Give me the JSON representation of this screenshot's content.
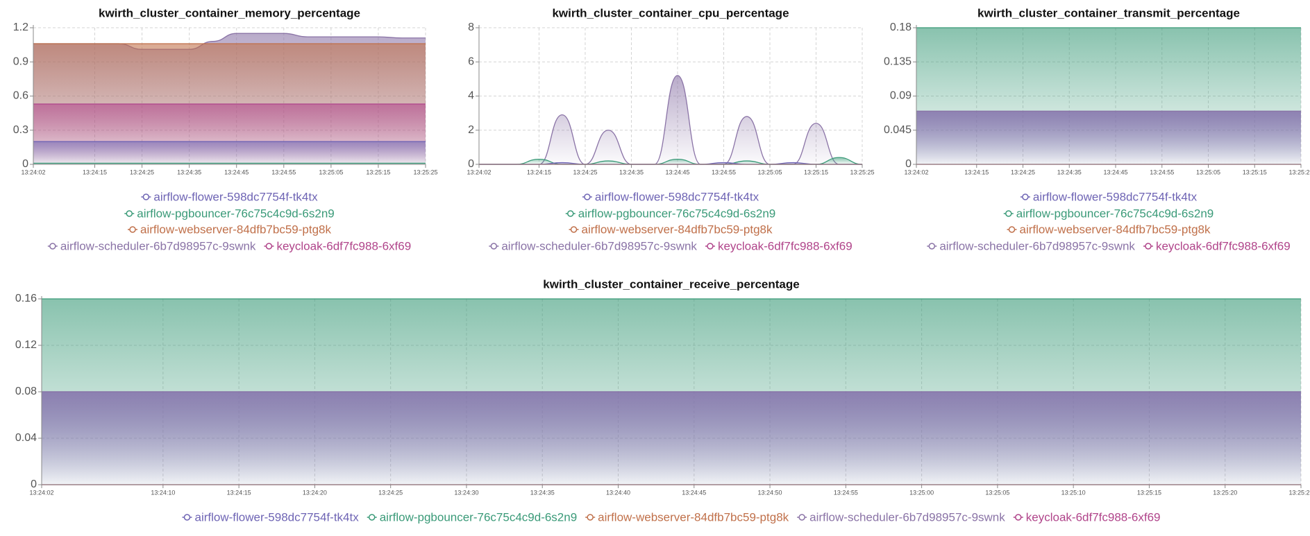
{
  "chart_data": [
    {
      "type": "area",
      "title": "kwirth_cluster_container_memory_percentage",
      "x": [
        "13:24:02",
        "13:24:05",
        "13:24:10",
        "13:24:15",
        "13:24:20",
        "13:24:25",
        "13:24:30",
        "13:24:35",
        "13:24:40",
        "13:24:45",
        "13:24:50",
        "13:24:55",
        "13:25:00",
        "13:25:05",
        "13:25:10",
        "13:25:15",
        "13:25:20",
        "13:25:25"
      ],
      "xticks": [
        "13:24:02",
        "13:24:15",
        "13:24:25",
        "13:24:35",
        "13:24:45",
        "13:24:55",
        "13:25:05",
        "13:25:15",
        "13:25:25"
      ],
      "ylim": [
        0,
        1.2
      ],
      "yticks": [
        0,
        0.3,
        0.6,
        0.9,
        1.2
      ],
      "grid": true,
      "series": [
        {
          "name": "airflow-flower-598dc7754f-tk4tx",
          "color": "#6e64b4",
          "values": [
            0.2,
            0.2,
            0.2,
            0.2,
            0.2,
            0.2,
            0.2,
            0.2,
            0.2,
            0.2,
            0.2,
            0.2,
            0.2,
            0.2,
            0.2,
            0.2,
            0.2,
            0.2
          ]
        },
        {
          "name": "airflow-pgbouncer-76c75c4c9d-6s2n9",
          "color": "#3a9a78",
          "values": [
            0.01,
            0.01,
            0.01,
            0.01,
            0.01,
            0.01,
            0.01,
            0.01,
            0.01,
            0.01,
            0.01,
            0.01,
            0.01,
            0.01,
            0.01,
            0.01,
            0.01,
            0.01
          ]
        },
        {
          "name": "airflow-webserver-84dfb7bc59-ptg8k",
          "color": "#c0704a",
          "values": [
            1.06,
            1.06,
            1.06,
            1.06,
            1.06,
            1.06,
            1.06,
            1.06,
            1.06,
            1.06,
            1.06,
            1.06,
            1.06,
            1.06,
            1.06,
            1.06,
            1.06,
            1.06
          ]
        },
        {
          "name": "airflow-scheduler-6b7d98957c-9swnk",
          "color": "#8a73a6",
          "values": [
            1.06,
            1.06,
            1.06,
            1.06,
            1.06,
            1.01,
            1.01,
            1.01,
            1.08,
            1.15,
            1.15,
            1.15,
            1.12,
            1.12,
            1.12,
            1.12,
            1.11,
            1.11
          ]
        },
        {
          "name": "keycloak-6df7fc988-6xf69",
          "color": "#b0448a",
          "values": [
            0.53,
            0.53,
            0.53,
            0.53,
            0.53,
            0.53,
            0.53,
            0.53,
            0.53,
            0.53,
            0.53,
            0.53,
            0.53,
            0.53,
            0.53,
            0.53,
            0.53,
            0.53
          ]
        }
      ]
    },
    {
      "type": "area",
      "title": "kwirth_cluster_container_cpu_percentage",
      "x": [
        "13:24:02",
        "13:24:05",
        "13:24:10",
        "13:24:15",
        "13:24:20",
        "13:24:25",
        "13:24:30",
        "13:24:35",
        "13:24:40",
        "13:24:45",
        "13:24:50",
        "13:24:55",
        "13:25:00",
        "13:25:05",
        "13:25:10",
        "13:25:15",
        "13:25:20",
        "13:25:25"
      ],
      "xticks": [
        "13:24:02",
        "13:24:15",
        "13:24:25",
        "13:24:35",
        "13:24:45",
        "13:24:55",
        "13:25:05",
        "13:25:15",
        "13:25:25"
      ],
      "ylim": [
        0,
        8
      ],
      "yticks": [
        0,
        2,
        4,
        6,
        8
      ],
      "grid": true,
      "series": [
        {
          "name": "airflow-flower-598dc7754f-tk4tx",
          "color": "#6e64b4",
          "values": [
            0,
            0,
            0,
            0,
            0.1,
            0,
            0,
            0,
            0,
            0,
            0,
            0.1,
            0,
            0,
            0.1,
            0,
            0,
            0
          ]
        },
        {
          "name": "airflow-pgbouncer-76c75c4c9d-6s2n9",
          "color": "#3a9a78",
          "values": [
            0,
            0,
            0,
            0.3,
            0,
            0,
            0.2,
            0,
            0,
            0.3,
            0,
            0,
            0.2,
            0,
            0,
            0,
            0.4,
            0
          ]
        },
        {
          "name": "airflow-webserver-84dfb7bc59-ptg8k",
          "color": "#c0704a",
          "values": [
            0,
            0,
            0,
            0,
            0,
            0,
            0,
            0,
            0,
            0,
            0,
            0,
            0,
            0,
            0,
            0,
            0,
            0
          ]
        },
        {
          "name": "airflow-scheduler-6b7d98957c-9swnk",
          "color": "#8a73a6",
          "values": [
            0,
            0,
            0,
            0,
            2.9,
            0,
            2.0,
            0,
            0,
            5.2,
            0,
            0,
            2.8,
            0,
            0,
            2.4,
            0,
            0
          ]
        },
        {
          "name": "keycloak-6df7fc988-6xf69",
          "color": "#b0448a",
          "values": [
            0,
            0,
            0,
            0,
            0,
            0,
            0,
            0,
            0,
            0,
            0,
            0,
            0,
            0,
            0,
            0,
            0,
            0
          ]
        }
      ]
    },
    {
      "type": "area",
      "title": "kwirth_cluster_container_transmit_percentage",
      "x": [
        "13:24:02",
        "13:24:05",
        "13:24:10",
        "13:24:15",
        "13:24:20",
        "13:24:25",
        "13:24:30",
        "13:24:35",
        "13:24:40",
        "13:24:45",
        "13:24:50",
        "13:24:55",
        "13:25:00",
        "13:25:05",
        "13:25:10",
        "13:25:15",
        "13:25:20",
        "13:25:25"
      ],
      "xticks": [
        "13:24:02",
        "13:24:15",
        "13:24:25",
        "13:24:35",
        "13:24:45",
        "13:24:55",
        "13:25:05",
        "13:25:15",
        "13:25:25"
      ],
      "ylim": [
        0,
        0.18
      ],
      "yticks": [
        0,
        0.045,
        0.09,
        0.135,
        0.18
      ],
      "grid": true,
      "series": [
        {
          "name": "airflow-flower-598dc7754f-tk4tx",
          "color": "#6e64b4",
          "values": [
            0.07,
            0.07,
            0.07,
            0.07,
            0.07,
            0.07,
            0.07,
            0.07,
            0.07,
            0.07,
            0.07,
            0.07,
            0.07,
            0.07,
            0.07,
            0.07,
            0.07,
            0.07
          ]
        },
        {
          "name": "airflow-pgbouncer-76c75c4c9d-6s2n9",
          "color": "#3a9a78",
          "values": [
            0.18,
            0.18,
            0.18,
            0.18,
            0.18,
            0.18,
            0.18,
            0.18,
            0.18,
            0.18,
            0.18,
            0.18,
            0.18,
            0.18,
            0.18,
            0.18,
            0.18,
            0.18
          ]
        },
        {
          "name": "airflow-webserver-84dfb7bc59-ptg8k",
          "color": "#c0704a",
          "values": [
            0,
            0,
            0,
            0,
            0,
            0,
            0,
            0,
            0,
            0,
            0,
            0,
            0,
            0,
            0,
            0,
            0,
            0
          ]
        },
        {
          "name": "airflow-scheduler-6b7d98957c-9swnk",
          "color": "#8a73a6",
          "values": [
            0.07,
            0.07,
            0.07,
            0.07,
            0.07,
            0.07,
            0.07,
            0.07,
            0.07,
            0.07,
            0.07,
            0.07,
            0.07,
            0.07,
            0.07,
            0.07,
            0.07,
            0.07
          ]
        },
        {
          "name": "keycloak-6df7fc988-6xf69",
          "color": "#b0448a",
          "values": [
            0,
            0,
            0,
            0,
            0,
            0,
            0,
            0,
            0,
            0,
            0,
            0,
            0,
            0,
            0,
            0,
            0,
            0
          ]
        }
      ]
    },
    {
      "type": "area",
      "title": "kwirth_cluster_container_receive_percentage",
      "x": [
        "13:24:02",
        "13:24:05",
        "13:24:10",
        "13:24:15",
        "13:24:20",
        "13:24:25",
        "13:24:30",
        "13:24:35",
        "13:24:40",
        "13:24:45",
        "13:24:50",
        "13:24:55",
        "13:25:00",
        "13:25:05",
        "13:25:10",
        "13:25:15",
        "13:25:20",
        "13:25:25"
      ],
      "xticks": [
        "13:24:02",
        "13:24:10",
        "13:24:15",
        "13:24:20",
        "13:24:25",
        "13:24:30",
        "13:24:35",
        "13:24:40",
        "13:24:45",
        "13:24:50",
        "13:24:55",
        "13:25:00",
        "13:25:05",
        "13:25:10",
        "13:25:15",
        "13:25:20",
        "13:25:25"
      ],
      "ylim": [
        0,
        0.16
      ],
      "yticks": [
        0,
        0.04,
        0.08,
        0.12,
        0.16
      ],
      "grid": true,
      "series": [
        {
          "name": "airflow-flower-598dc7754f-tk4tx",
          "color": "#6e64b4",
          "values": [
            0.08,
            0.08,
            0.08,
            0.08,
            0.08,
            0.08,
            0.08,
            0.08,
            0.08,
            0.08,
            0.08,
            0.08,
            0.08,
            0.08,
            0.08,
            0.08,
            0.08,
            0.08
          ]
        },
        {
          "name": "airflow-pgbouncer-76c75c4c9d-6s2n9",
          "color": "#3a9a78",
          "values": [
            0.16,
            0.16,
            0.16,
            0.16,
            0.16,
            0.16,
            0.16,
            0.16,
            0.16,
            0.16,
            0.16,
            0.16,
            0.16,
            0.16,
            0.16,
            0.16,
            0.16,
            0.16
          ]
        },
        {
          "name": "airflow-webserver-84dfb7bc59-ptg8k",
          "color": "#c0704a",
          "values": [
            0,
            0,
            0,
            0,
            0,
            0,
            0,
            0,
            0,
            0,
            0,
            0,
            0,
            0,
            0,
            0,
            0,
            0
          ]
        },
        {
          "name": "airflow-scheduler-6b7d98957c-9swnk",
          "color": "#8a73a6",
          "values": [
            0.08,
            0.08,
            0.08,
            0.08,
            0.08,
            0.08,
            0.08,
            0.08,
            0.08,
            0.08,
            0.08,
            0.08,
            0.08,
            0.08,
            0.08,
            0.08,
            0.08,
            0.08
          ]
        },
        {
          "name": "keycloak-6df7fc988-6xf69",
          "color": "#b0448a",
          "values": [
            0,
            0,
            0,
            0,
            0,
            0,
            0,
            0,
            0,
            0,
            0,
            0,
            0,
            0,
            0,
            0,
            0,
            0
          ]
        }
      ]
    }
  ]
}
